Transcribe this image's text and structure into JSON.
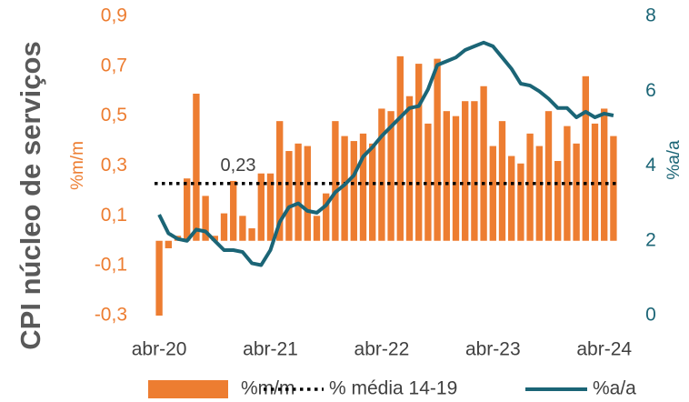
{
  "chart_data": {
    "type": "bar_line",
    "title": "CPI núcleo de serviços",
    "y_label": "%m/m",
    "y2_label": "%a/a",
    "categories": [
      "abr-20",
      null,
      null,
      null,
      null,
      null,
      null,
      null,
      null,
      null,
      null,
      null,
      "abr-21",
      null,
      null,
      null,
      null,
      null,
      null,
      null,
      null,
      null,
      null,
      null,
      "abr-22",
      null,
      null,
      null,
      null,
      null,
      null,
      null,
      null,
      null,
      null,
      null,
      "abr-23",
      null,
      null,
      null,
      null,
      null,
      null,
      null,
      null,
      null,
      null,
      null,
      "abr-24",
      null
    ],
    "series": [
      {
        "name": "%m/m",
        "type": "bar",
        "color": "#ED7D31",
        "values": [
          -0.3,
          -0.03,
          0.02,
          0.25,
          0.59,
          0.18,
          0.02,
          0.11,
          0.24,
          0.1,
          0.05,
          0.27,
          0.27,
          0.48,
          0.36,
          0.39,
          0.38,
          0.1,
          0.19,
          0.48,
          0.42,
          0.4,
          0.43,
          0.39,
          0.53,
          0.52,
          0.74,
          0.58,
          0.71,
          0.47,
          0.73,
          0.52,
          0.5,
          0.56,
          0.56,
          0.62,
          0.38,
          0.48,
          0.34,
          0.31,
          0.43,
          0.38,
          0.52,
          0.32,
          0.46,
          0.39,
          0.66,
          0.47,
          0.53,
          0.42
        ]
      },
      {
        "name": "% média 14-19",
        "type": "reference",
        "color": "#000000",
        "dash": "dotted",
        "value": 0.23,
        "value_label": "0,23"
      },
      {
        "name": "%a/a",
        "type": "line",
        "axis": "y2",
        "color": "#1B6576",
        "values": [
          2.7,
          2.2,
          2.05,
          2.0,
          2.3,
          2.25,
          2.0,
          1.75,
          1.75,
          1.7,
          1.4,
          1.35,
          1.75,
          2.5,
          2.9,
          3.0,
          2.8,
          2.75,
          2.95,
          3.3,
          3.5,
          3.75,
          4.25,
          4.5,
          4.8,
          5.05,
          5.3,
          5.55,
          5.6,
          6.05,
          6.7,
          6.8,
          6.9,
          7.1,
          7.2,
          7.3,
          7.2,
          6.9,
          6.6,
          6.2,
          6.15,
          6.0,
          5.8,
          5.55,
          5.55,
          5.3,
          5.45,
          5.3,
          5.4,
          5.35
        ]
      }
    ],
    "ylim": [
      -0.3,
      0.9
    ],
    "yticks": [
      {
        "value": -0.3,
        "label": "-0,3"
      },
      {
        "value": -0.1,
        "label": "-0,1"
      },
      {
        "value": 0.1,
        "label": "0,1"
      },
      {
        "value": 0.3,
        "label": "0,3"
      },
      {
        "value": 0.5,
        "label": "0,5"
      },
      {
        "value": 0.7,
        "label": "0,7"
      },
      {
        "value": 0.9,
        "label": "0,9"
      }
    ],
    "y2lim": [
      0,
      8
    ],
    "y2ticks": [
      0,
      2,
      4,
      6,
      8
    ],
    "y_color": "#ED7D31",
    "y2_color": "#1B6576",
    "grid": false
  }
}
